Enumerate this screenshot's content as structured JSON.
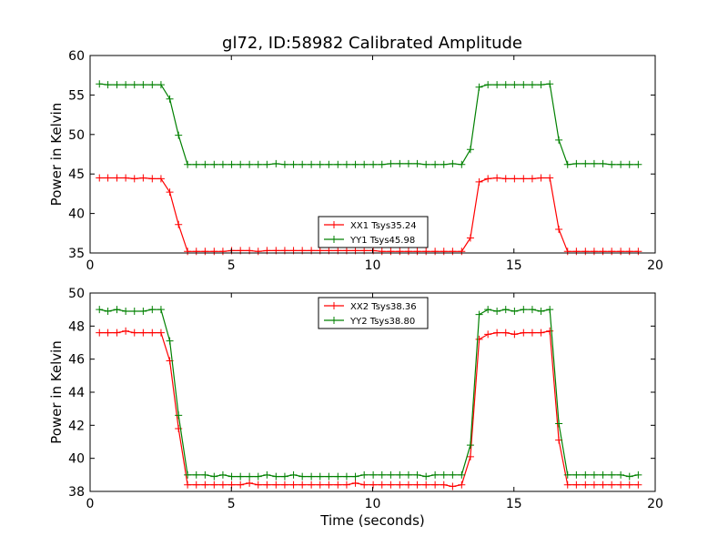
{
  "title": "gl72, ID:58982 Calibrated Amplitude",
  "chart_data": [
    {
      "type": "line",
      "ylabel": "Power in Kelvin",
      "xlabel": "",
      "xlim": [
        0,
        20
      ],
      "ylim": [
        35,
        60
      ],
      "xticks": [
        "0",
        "5",
        "10",
        "15",
        "20"
      ],
      "yticks": [
        "35",
        "40",
        "45",
        "50",
        "55",
        "60"
      ],
      "legend_position": "bottom-center",
      "x": [
        0.33,
        0.63,
        0.95,
        1.26,
        1.57,
        1.88,
        2.2,
        2.51,
        2.82,
        3.13,
        3.45,
        3.76,
        4.07,
        4.39,
        4.7,
        5.01,
        5.32,
        5.64,
        5.95,
        6.26,
        6.58,
        6.89,
        7.2,
        7.51,
        7.83,
        8.14,
        8.45,
        8.77,
        9.08,
        9.39,
        9.7,
        10.02,
        10.33,
        10.64,
        10.96,
        11.27,
        11.58,
        11.89,
        12.21,
        12.52,
        12.83,
        13.15,
        13.46,
        13.77,
        14.08,
        14.4,
        14.71,
        15.02,
        15.34,
        15.65,
        15.96,
        16.27,
        16.59,
        16.9,
        17.21,
        17.53,
        17.84,
        18.15,
        18.46,
        18.78,
        19.09,
        19.4
      ],
      "series": [
        {
          "name": "XX1 Tsys35.24",
          "color": "#ff0000",
          "values": [
            44.5,
            44.5,
            44.5,
            44.5,
            44.4,
            44.5,
            44.4,
            44.4,
            42.7,
            38.6,
            35.2,
            35.2,
            35.2,
            35.2,
            35.2,
            35.3,
            35.3,
            35.3,
            35.2,
            35.3,
            35.3,
            35.3,
            35.3,
            35.3,
            35.3,
            35.3,
            35.3,
            35.3,
            35.3,
            35.3,
            35.3,
            35.3,
            35.2,
            35.2,
            35.2,
            35.2,
            35.2,
            35.2,
            35.2,
            35.2,
            35.2,
            35.2,
            36.9,
            44.0,
            44.4,
            44.5,
            44.4,
            44.4,
            44.4,
            44.4,
            44.5,
            44.5,
            38.0,
            35.2,
            35.2,
            35.2,
            35.2,
            35.2,
            35.2,
            35.2,
            35.2,
            35.2
          ]
        },
        {
          "name": "YY1 Tsys45.98",
          "color": "#008000",
          "values": [
            56.4,
            56.3,
            56.3,
            56.3,
            56.3,
            56.3,
            56.3,
            56.3,
            54.5,
            49.9,
            46.2,
            46.2,
            46.2,
            46.2,
            46.2,
            46.2,
            46.2,
            46.2,
            46.2,
            46.2,
            46.3,
            46.2,
            46.2,
            46.2,
            46.2,
            46.2,
            46.2,
            46.2,
            46.2,
            46.2,
            46.2,
            46.2,
            46.2,
            46.3,
            46.3,
            46.3,
            46.3,
            46.2,
            46.2,
            46.2,
            46.3,
            46.2,
            48.1,
            56.0,
            56.3,
            56.3,
            56.3,
            56.3,
            56.3,
            56.3,
            56.3,
            56.4,
            49.3,
            46.2,
            46.3,
            46.3,
            46.3,
            46.3,
            46.2,
            46.2,
            46.2,
            46.2
          ]
        }
      ]
    },
    {
      "type": "line",
      "ylabel": "Power in Kelvin",
      "xlabel": "Time (seconds)",
      "xlim": [
        0,
        20
      ],
      "ylim": [
        38,
        50
      ],
      "xticks": [
        "0",
        "5",
        "10",
        "15",
        "20"
      ],
      "yticks": [
        "38",
        "40",
        "42",
        "44",
        "46",
        "48",
        "50"
      ],
      "legend_position": "top-center",
      "x": [
        0.33,
        0.63,
        0.95,
        1.26,
        1.57,
        1.88,
        2.2,
        2.51,
        2.82,
        3.13,
        3.45,
        3.76,
        4.07,
        4.39,
        4.7,
        5.01,
        5.32,
        5.64,
        5.95,
        6.26,
        6.58,
        6.89,
        7.2,
        7.51,
        7.83,
        8.14,
        8.45,
        8.77,
        9.08,
        9.39,
        9.7,
        10.02,
        10.33,
        10.64,
        10.96,
        11.27,
        11.58,
        11.89,
        12.21,
        12.52,
        12.83,
        13.15,
        13.46,
        13.77,
        14.08,
        14.4,
        14.71,
        15.02,
        15.34,
        15.65,
        15.96,
        16.27,
        16.59,
        16.9,
        17.21,
        17.53,
        17.84,
        18.15,
        18.46,
        18.78,
        19.09,
        19.4
      ],
      "series": [
        {
          "name": "XX2 Tsys38.36",
          "color": "#ff0000",
          "values": [
            47.6,
            47.6,
            47.6,
            47.7,
            47.6,
            47.6,
            47.6,
            47.6,
            45.9,
            41.8,
            38.4,
            38.4,
            38.4,
            38.4,
            38.4,
            38.4,
            38.4,
            38.5,
            38.4,
            38.4,
            38.4,
            38.4,
            38.4,
            38.4,
            38.4,
            38.4,
            38.4,
            38.4,
            38.4,
            38.5,
            38.4,
            38.4,
            38.4,
            38.4,
            38.4,
            38.4,
            38.4,
            38.4,
            38.4,
            38.4,
            38.3,
            38.4,
            40.1,
            47.2,
            47.5,
            47.6,
            47.6,
            47.5,
            47.6,
            47.6,
            47.6,
            47.7,
            41.1,
            38.4,
            38.4,
            38.4,
            38.4,
            38.4,
            38.4,
            38.4,
            38.4,
            38.4
          ]
        },
        {
          "name": "YY2 Tsys38.80",
          "color": "#008000",
          "values": [
            49.0,
            48.9,
            49.0,
            48.9,
            48.9,
            48.9,
            49.0,
            49.0,
            47.1,
            42.6,
            39.0,
            39.0,
            39.0,
            38.9,
            39.0,
            38.9,
            38.9,
            38.9,
            38.9,
            39.0,
            38.9,
            38.9,
            39.0,
            38.9,
            38.9,
            38.9,
            38.9,
            38.9,
            38.9,
            38.9,
            39.0,
            39.0,
            39.0,
            39.0,
            39.0,
            39.0,
            39.0,
            38.9,
            39.0,
            39.0,
            39.0,
            39.0,
            40.8,
            48.7,
            49.0,
            48.9,
            49.0,
            48.9,
            49.0,
            49.0,
            48.9,
            49.0,
            42.1,
            39.0,
            39.0,
            39.0,
            39.0,
            39.0,
            39.0,
            39.0,
            38.9,
            39.0
          ]
        }
      ]
    }
  ]
}
